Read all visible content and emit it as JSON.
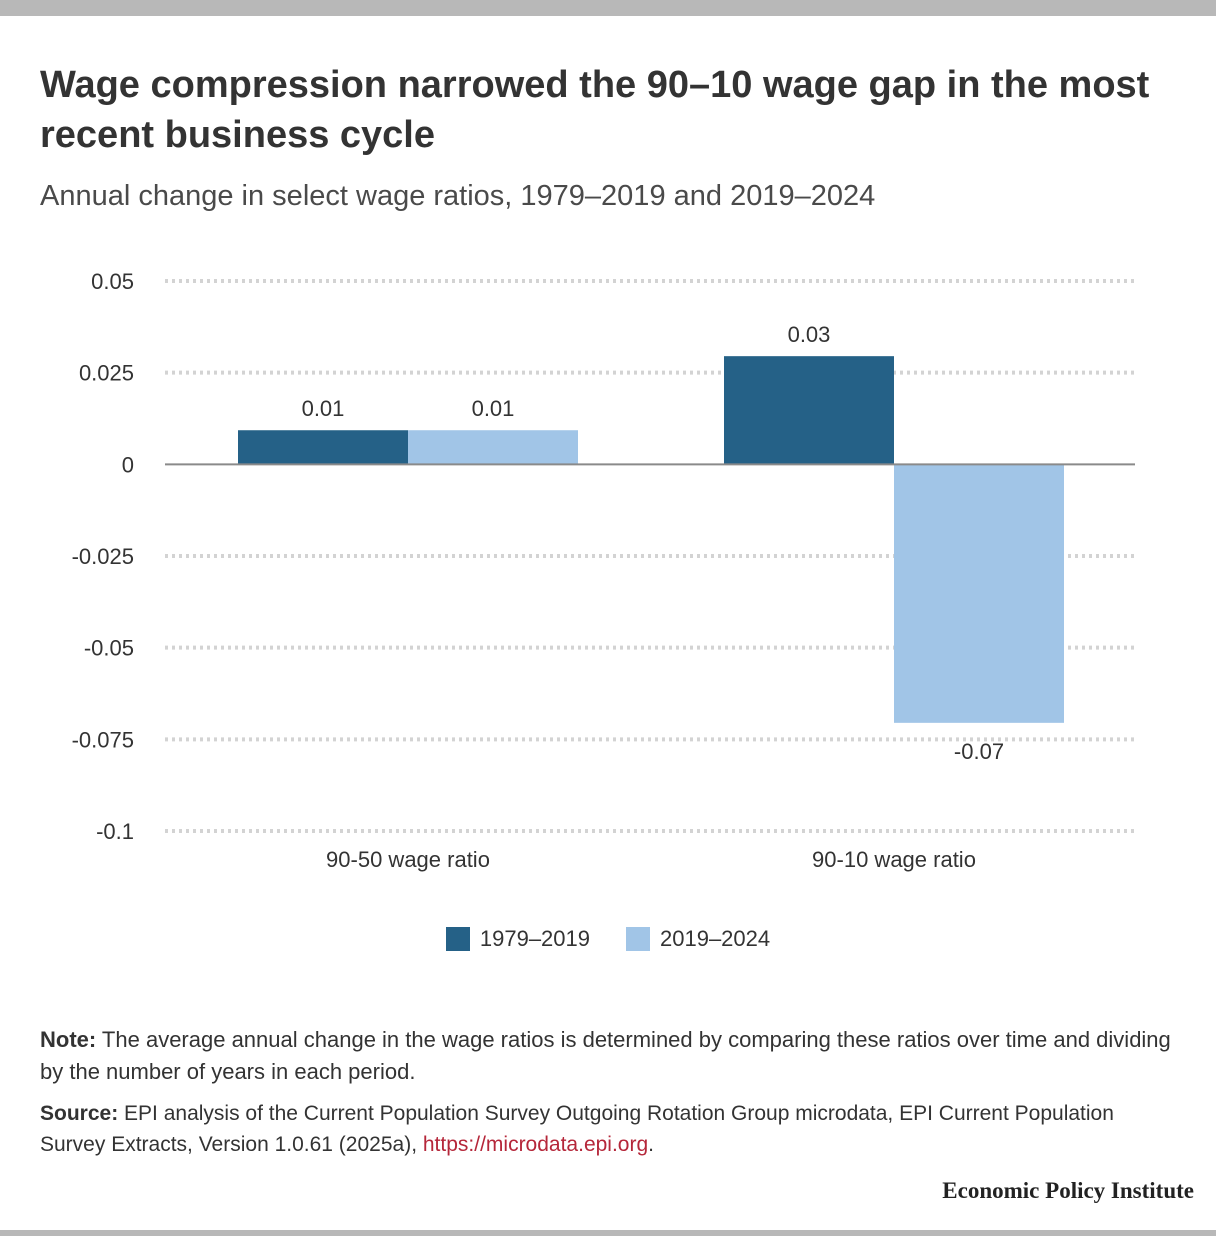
{
  "title": "Wage compression narrowed the 90–10 wage gap in the most recent business cycle",
  "subtitle": "Annual change in select wage ratios, 1979–2019 and 2019–2024",
  "colors": {
    "series_1": "#256187",
    "series_2": "#a1c5e7",
    "grid": "#d3d3d3",
    "zero_line": "#8a8a8a",
    "link": "#b5273a"
  },
  "chart_data": {
    "type": "bar",
    "categories": [
      "90-50 wage ratio",
      "90-10 wage ratio"
    ],
    "series": [
      {
        "name": "1979–2019",
        "values": [
          0.0093,
          0.0295
        ],
        "labels": [
          "0.01",
          "0.03"
        ]
      },
      {
        "name": "2019–2024",
        "values": [
          0.0093,
          -0.0705
        ],
        "labels": [
          "0.01",
          "-0.07"
        ]
      }
    ],
    "yticks": [
      0.05,
      0.025,
      0,
      -0.025,
      -0.05,
      -0.075,
      -0.1
    ],
    "ytick_labels": [
      "0.05",
      "0.025",
      "0",
      "-0.025",
      "-0.05",
      "-0.075",
      "-0.1"
    ],
    "ylim": [
      -0.1,
      0.05
    ],
    "grid": true,
    "legend": "bottom-center"
  },
  "note": {
    "label": "Note:",
    "text": " The average annual change in the wage ratios is determined by comparing these ratios over time and dividing by the number of years in each period."
  },
  "source": {
    "label": "Source:",
    "text": " EPI analysis of the Current Population Survey Outgoing Rotation Group microdata, EPI Current Population Survey Extracts, Version 1.0.61 (2025a), ",
    "link": "https://microdata.epi.org",
    "end": "."
  },
  "brand": "Economic Policy Institute"
}
